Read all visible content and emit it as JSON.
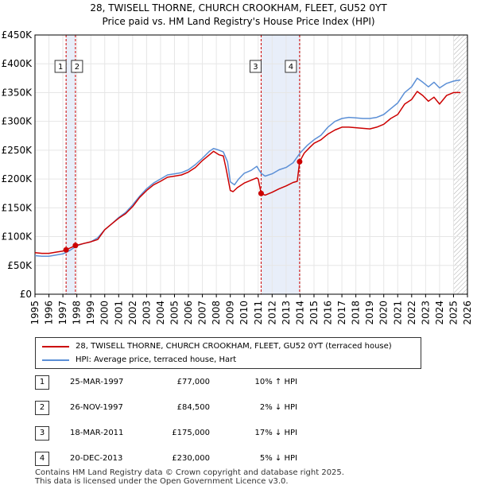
{
  "title": {
    "line1": "28, TWISELL THORNE, CHURCH CROOKHAM, FLEET, GU52 0YT",
    "line2": "Price paid vs. HM Land Registry's House Price Index (HPI)"
  },
  "chart_data": {
    "type": "line",
    "ylim": [
      0,
      450000
    ],
    "xlim": [
      1995,
      2026
    ],
    "yticks": [
      {
        "v": 0,
        "label": "£0"
      },
      {
        "v": 50000,
        "label": "£50K"
      },
      {
        "v": 100000,
        "label": "£100K"
      },
      {
        "v": 150000,
        "label": "£150K"
      },
      {
        "v": 200000,
        "label": "£200K"
      },
      {
        "v": 250000,
        "label": "£250K"
      },
      {
        "v": 300000,
        "label": "£300K"
      },
      {
        "v": 350000,
        "label": "£350K"
      },
      {
        "v": 400000,
        "label": "£400K"
      },
      {
        "v": 450000,
        "label": "£450K"
      }
    ],
    "xticks": [
      "1995",
      "1996",
      "1997",
      "1998",
      "1999",
      "2000",
      "2001",
      "2002",
      "2003",
      "2004",
      "2005",
      "2006",
      "2007",
      "2008",
      "2009",
      "2010",
      "2011",
      "2012",
      "2013",
      "2014",
      "2015",
      "2016",
      "2017",
      "2018",
      "2019",
      "2020",
      "2021",
      "2022",
      "2023",
      "2024",
      "2025",
      "2026"
    ],
    "series": [
      {
        "name": "28, TWISELL THORNE, CHURCH CROOKHAM, FLEET, GU52 0YT (terraced house)",
        "color": "#cc0000",
        "points": [
          [
            1995.0,
            72000
          ],
          [
            1995.5,
            71000
          ],
          [
            1996.0,
            71000
          ],
          [
            1996.5,
            73000
          ],
          [
            1997.0,
            75000
          ],
          [
            1997.23,
            77000
          ],
          [
            1997.5,
            80000
          ],
          [
            1997.9,
            84500
          ],
          [
            1998.5,
            88000
          ],
          [
            1999.0,
            91000
          ],
          [
            1999.5,
            95000
          ],
          [
            2000.0,
            112000
          ],
          [
            2000.5,
            122000
          ],
          [
            2001.0,
            132000
          ],
          [
            2001.5,
            140000
          ],
          [
            2002.0,
            152000
          ],
          [
            2002.5,
            168000
          ],
          [
            2003.0,
            180000
          ],
          [
            2003.5,
            190000
          ],
          [
            2004.0,
            196000
          ],
          [
            2004.5,
            203000
          ],
          [
            2005.0,
            205000
          ],
          [
            2005.5,
            207000
          ],
          [
            2006.0,
            212000
          ],
          [
            2006.5,
            220000
          ],
          [
            2007.0,
            232000
          ],
          [
            2007.5,
            242000
          ],
          [
            2007.8,
            248000
          ],
          [
            2008.2,
            242000
          ],
          [
            2008.5,
            240000
          ],
          [
            2008.7,
            218000
          ],
          [
            2009.0,
            180000
          ],
          [
            2009.2,
            178000
          ],
          [
            2009.5,
            185000
          ],
          [
            2010.0,
            193000
          ],
          [
            2010.5,
            198000
          ],
          [
            2010.9,
            202000
          ],
          [
            2011.0,
            200000
          ],
          [
            2011.21,
            175000
          ],
          [
            2011.5,
            172000
          ],
          [
            2012.0,
            177000
          ],
          [
            2012.5,
            183000
          ],
          [
            2013.0,
            188000
          ],
          [
            2013.5,
            194000
          ],
          [
            2013.8,
            196000
          ],
          [
            2013.97,
            230000
          ],
          [
            2014.3,
            245000
          ],
          [
            2014.7,
            255000
          ],
          [
            2015.0,
            262000
          ],
          [
            2015.5,
            268000
          ],
          [
            2016.0,
            278000
          ],
          [
            2016.5,
            285000
          ],
          [
            2017.0,
            290000
          ],
          [
            2017.5,
            290000
          ],
          [
            2018.0,
            289000
          ],
          [
            2018.5,
            288000
          ],
          [
            2019.0,
            287000
          ],
          [
            2019.5,
            290000
          ],
          [
            2020.0,
            295000
          ],
          [
            2020.5,
            305000
          ],
          [
            2021.0,
            312000
          ],
          [
            2021.5,
            330000
          ],
          [
            2022.0,
            338000
          ],
          [
            2022.4,
            352000
          ],
          [
            2022.8,
            345000
          ],
          [
            2023.2,
            335000
          ],
          [
            2023.6,
            342000
          ],
          [
            2024.0,
            330000
          ],
          [
            2024.5,
            345000
          ],
          [
            2025.0,
            350000
          ],
          [
            2025.5,
            350000
          ]
        ]
      },
      {
        "name": "HPI: Average price, terraced house, Hart",
        "color": "#5b8fd6",
        "points": [
          [
            1995.0,
            67000
          ],
          [
            1995.5,
            66000
          ],
          [
            1996.0,
            66000
          ],
          [
            1996.5,
            68000
          ],
          [
            1997.0,
            70000
          ],
          [
            1997.5,
            76000
          ],
          [
            1998.0,
            84000
          ],
          [
            1998.5,
            88000
          ],
          [
            1999.0,
            91000
          ],
          [
            1999.5,
            98000
          ],
          [
            2000.0,
            112000
          ],
          [
            2000.5,
            122000
          ],
          [
            2001.0,
            133000
          ],
          [
            2001.5,
            142000
          ],
          [
            2002.0,
            155000
          ],
          [
            2002.5,
            170000
          ],
          [
            2003.0,
            183000
          ],
          [
            2003.5,
            193000
          ],
          [
            2004.0,
            200000
          ],
          [
            2004.5,
            207000
          ],
          [
            2005.0,
            209000
          ],
          [
            2005.5,
            211000
          ],
          [
            2006.0,
            216000
          ],
          [
            2006.5,
            225000
          ],
          [
            2007.0,
            236000
          ],
          [
            2007.5,
            248000
          ],
          [
            2007.8,
            253000
          ],
          [
            2008.2,
            250000
          ],
          [
            2008.5,
            247000
          ],
          [
            2008.8,
            230000
          ],
          [
            2009.0,
            195000
          ],
          [
            2009.3,
            190000
          ],
          [
            2009.6,
            200000
          ],
          [
            2010.0,
            210000
          ],
          [
            2010.5,
            215000
          ],
          [
            2010.9,
            222000
          ],
          [
            2011.2,
            210000
          ],
          [
            2011.5,
            205000
          ],
          [
            2012.0,
            209000
          ],
          [
            2012.5,
            216000
          ],
          [
            2013.0,
            220000
          ],
          [
            2013.5,
            228000
          ],
          [
            2014.0,
            245000
          ],
          [
            2014.5,
            258000
          ],
          [
            2015.0,
            268000
          ],
          [
            2015.5,
            276000
          ],
          [
            2016.0,
            290000
          ],
          [
            2016.5,
            300000
          ],
          [
            2017.0,
            305000
          ],
          [
            2017.5,
            307000
          ],
          [
            2018.0,
            306000
          ],
          [
            2018.5,
            305000
          ],
          [
            2019.0,
            305000
          ],
          [
            2019.5,
            307000
          ],
          [
            2020.0,
            312000
          ],
          [
            2020.5,
            322000
          ],
          [
            2021.0,
            332000
          ],
          [
            2021.5,
            350000
          ],
          [
            2022.0,
            360000
          ],
          [
            2022.4,
            375000
          ],
          [
            2022.8,
            368000
          ],
          [
            2023.2,
            360000
          ],
          [
            2023.6,
            368000
          ],
          [
            2024.0,
            358000
          ],
          [
            2024.5,
            366000
          ],
          [
            2025.0,
            370000
          ],
          [
            2025.5,
            372000
          ]
        ]
      }
    ],
    "sales": [
      {
        "id": "1",
        "x": 1997.23,
        "price": 77000
      },
      {
        "id": "2",
        "x": 1997.9,
        "price": 84500
      },
      {
        "id": "3",
        "x": 2011.21,
        "price": 175000
      },
      {
        "id": "4",
        "x": 2013.97,
        "price": 230000
      }
    ],
    "shaded_ranges": [
      [
        1997.23,
        1997.9
      ],
      [
        2011.21,
        2013.97
      ]
    ],
    "hatch_from": 2025.0
  },
  "legend": {
    "red_label": "28, TWISELL THORNE, CHURCH CROOKHAM, FLEET, GU52 0YT (terraced house)",
    "blue_label": "HPI: Average price, terraced house, Hart",
    "red_color": "#cc0000",
    "blue_color": "#5b8fd6"
  },
  "transactions": [
    {
      "num": "1",
      "date": "25-MAR-1997",
      "price": "£77,000",
      "hpi": "10% ↑ HPI"
    },
    {
      "num": "2",
      "date": "26-NOV-1997",
      "price": "£84,500",
      "hpi": "2% ↓ HPI"
    },
    {
      "num": "3",
      "date": "18-MAR-2011",
      "price": "£175,000",
      "hpi": "17% ↓ HPI"
    },
    {
      "num": "4",
      "date": "20-DEC-2013",
      "price": "£230,000",
      "hpi": "5% ↓ HPI"
    }
  ],
  "footer": {
    "line1": "Contains HM Land Registry data © Crown copyright and database right 2025.",
    "line2": "This data is licensed under the Open Government Licence v3.0."
  }
}
